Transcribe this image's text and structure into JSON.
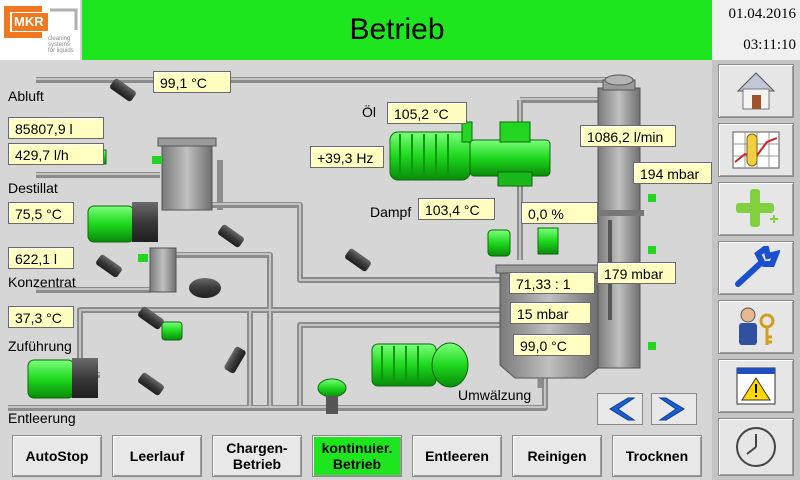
{
  "header": {
    "title": "Betrieb",
    "date": "01.04.2016",
    "time": "03:11:10",
    "logo": {
      "brand": "MKR",
      "tagline_lines": [
        "cleaning",
        "systems",
        "for liquids"
      ]
    }
  },
  "labels": {
    "abluft": "Abluft",
    "destillat": "Destillat",
    "konzentrat": "Konzentrat",
    "zufuehrung": "Zuführung",
    "entleerung": "Entleerung",
    "oel": "Öl",
    "dampf": "Dampf",
    "umwaelzung": "Umwälzung"
  },
  "values": {
    "abluft_temp": "99,1 °C",
    "destillat_total": "85807,9 l",
    "destillat_flow": "429,7 l/h",
    "destillat_temp": "75,5 °C",
    "konzentrat_total": "622,1 l",
    "zufuehrung_temp": "37,3 °C",
    "oel_temp": "105,2 °C",
    "frequency": "+39,3 Hz",
    "dampf_temp": "103,4 °C",
    "valve_position": "0,0 %",
    "circulation_flow": "1086,2 l/min",
    "top_pressure": "194 mbar",
    "column_pressure": "179 mbar",
    "ratio": "71,33 : 1",
    "vessel_pressure": "15 mbar",
    "vessel_temp": "99,0 °C"
  },
  "bottom_buttons": [
    {
      "label": "AutoStop",
      "active": false
    },
    {
      "label": "Leerlauf",
      "active": false
    },
    {
      "label": "Chargen-\nBetrieb",
      "active": false
    },
    {
      "label": "kontinuier.\nBetrieb",
      "active": true
    },
    {
      "label": "Entleeren",
      "active": false
    },
    {
      "label": "Reinigen",
      "active": false
    },
    {
      "label": "Trocknen",
      "active": false
    }
  ],
  "sidebar": [
    {
      "icon": "home-icon"
    },
    {
      "icon": "trend-chart-icon"
    },
    {
      "icon": "add-icon"
    },
    {
      "icon": "wrench-icon"
    },
    {
      "icon": "user-key-icon"
    },
    {
      "icon": "warning-icon"
    },
    {
      "icon": "clock-icon"
    }
  ],
  "nav": {
    "prev_icon": "chevron-left-icon",
    "next_icon": "chevron-right-icon"
  },
  "colors": {
    "header_green": "#1ee61e",
    "active_button": "#1ee61e",
    "value_box": "#ffffc2",
    "equipment_green": "#22d622",
    "nav_blue": "#1a5fd0"
  }
}
